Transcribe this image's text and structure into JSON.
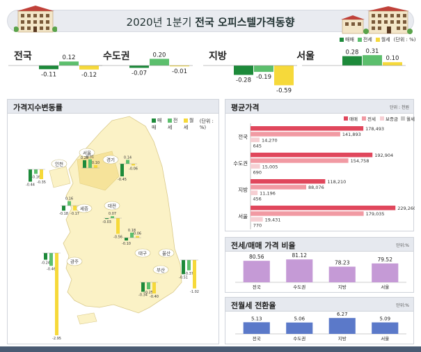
{
  "title_prefix": "2020년 1분기 ",
  "title_bold": "전국 오피스텔가격동향",
  "legend_top": {
    "sale": "매매",
    "jeon": "전세",
    "wol": "월세",
    "unit": "(단위 : %)"
  },
  "colors": {
    "sale": "#1d8a3a",
    "jeon": "#5cbf6d",
    "wol": "#f6d93a",
    "avg_sale": "#e0475c",
    "avg_jeon": "#f19aa3",
    "avg_deposit": "#f6cfd3",
    "avg_wol": "#c8c8c8",
    "ratio": "#c59ad6",
    "conv": "#5b79c9"
  },
  "summary": [
    {
      "region": "전국",
      "values": [
        -0.11,
        0.12,
        -0.12
      ],
      "labels": [
        "-0.11",
        "0.12",
        "-0.12"
      ]
    },
    {
      "region": "수도권",
      "values": [
        -0.07,
        0.2,
        -0.01
      ],
      "labels": [
        "-0.07",
        "0.20",
        "-0.01"
      ]
    },
    {
      "region": "지방",
      "values": [
        -0.28,
        -0.19,
        -0.59
      ],
      "labels": [
        "-0.28",
        "-0.19",
        "-0.59"
      ]
    },
    {
      "region": "서울",
      "values": [
        0.28,
        0.31,
        0.1
      ],
      "labels": [
        "0.28",
        "0.31",
        "0.10"
      ]
    }
  ],
  "map_panel": {
    "title": "가격지수변동률",
    "legend": {
      "sale": "매매",
      "jeon": "전세",
      "wol": "월세",
      "unit": "(단위 : %)"
    }
  },
  "map_regions": [
    {
      "name": "서울",
      "values": [
        0.28,
        0.31,
        0.1
      ],
      "labels": [
        "0.28",
        "0.31",
        "0.10"
      ]
    },
    {
      "name": "경기",
      "values": [
        -0.45,
        0.14,
        -0.06
      ],
      "labels": [
        "-0.45",
        "0.14",
        "-0.06"
      ]
    },
    {
      "name": "인천",
      "values": [
        -0.44,
        -0.16,
        -0.35
      ],
      "labels": [
        "-0.44",
        "-0.16",
        "-0.35"
      ]
    },
    {
      "name": "세종",
      "values": [
        -0.18,
        0.16,
        -0.17
      ],
      "labels": [
        "-0.18",
        "0.16",
        "-0.17"
      ]
    },
    {
      "name": "대전",
      "values": [
        -0.03,
        0.07,
        -0.56
      ],
      "labels": [
        "-0.03",
        "0.07",
        "-0.56"
      ]
    },
    {
      "name": "대구",
      "values": [
        -0.1,
        0.18,
        0.06
      ],
      "labels": [
        "-0.10",
        "0.18",
        "0.06"
      ]
    },
    {
      "name": "광주",
      "values": [
        -0.24,
        -0.46,
        -2.95
      ],
      "labels": [
        "-0.24",
        "-0.46",
        "-2.95"
      ]
    },
    {
      "name": "울산",
      "values": [
        -0.51,
        -0.37,
        -1.02
      ],
      "labels": [
        "-0.51",
        "-0.37",
        "-1.02"
      ]
    },
    {
      "name": "부산",
      "values": [
        -0.34,
        -0.25,
        -0.4
      ],
      "labels": [
        "-0.34",
        "-0.25",
        "-0.40"
      ]
    }
  ],
  "avg_panel": {
    "title": "평균가격",
    "unit": "단위 : 천원",
    "legend": [
      "매매",
      "전세",
      "보증금",
      "월세"
    ]
  },
  "avg_price": [
    {
      "region": "전국",
      "values": [
        178493,
        141893,
        14270,
        645
      ],
      "labels": [
        "178,493",
        "141,893",
        "14,270",
        "645"
      ]
    },
    {
      "region": "수도권",
      "values": [
        192904,
        154758,
        15005,
        690
      ],
      "labels": [
        "192,904",
        "154,758",
        "15,005",
        "690"
      ]
    },
    {
      "region": "지방",
      "values": [
        118210,
        88076,
        11196,
        456
      ],
      "labels": [
        "118,210",
        "88,076",
        "11,196",
        "456"
      ]
    },
    {
      "region": "서울",
      "values": [
        229260,
        179035,
        19431,
        770
      ],
      "labels": [
        "229,260",
        "179,035",
        "19,431",
        "770"
      ]
    }
  ],
  "ratio_panel": {
    "title": "전세/매매 가격 비율",
    "unit": "단위:%"
  },
  "ratio": {
    "categories": [
      "전국",
      "수도권",
      "지방",
      "서울"
    ],
    "values": [
      80.56,
      81.12,
      78.23,
      79.52
    ],
    "labels": [
      "80.56",
      "81.12",
      "78.23",
      "79.52"
    ]
  },
  "conv_panel": {
    "title": "전월세 전환율",
    "unit": "단위:%"
  },
  "conv": {
    "categories": [
      "전국",
      "수도권",
      "지방",
      "서울"
    ],
    "values": [
      5.13,
      5.06,
      6.27,
      5.09
    ],
    "labels": [
      "5.13",
      "5.06",
      "6.27",
      "5.09"
    ]
  },
  "chart_data": [
    {
      "type": "bar",
      "title": "전국 오피스텔가격동향",
      "categories": [
        "전국",
        "수도권",
        "지방",
        "서울"
      ],
      "series": [
        {
          "name": "매매",
          "values": [
            -0.11,
            -0.07,
            -0.28,
            0.28
          ]
        },
        {
          "name": "전세",
          "values": [
            0.12,
            0.2,
            -0.19,
            0.31
          ]
        },
        {
          "name": "월세",
          "values": [
            -0.12,
            -0.01,
            -0.59,
            0.1
          ]
        }
      ]
    },
    {
      "type": "bar",
      "title": "평균가격",
      "categories": [
        "전국",
        "수도권",
        "지방",
        "서울"
      ],
      "series": [
        {
          "name": "매매",
          "values": [
            178493,
            192904,
            118210,
            229260
          ]
        },
        {
          "name": "전세",
          "values": [
            141893,
            154758,
            88076,
            179035
          ]
        },
        {
          "name": "보증금",
          "values": [
            14270,
            15005,
            11196,
            19431
          ]
        },
        {
          "name": "월세",
          "values": [
            645,
            690,
            456,
            770
          ]
        }
      ]
    },
    {
      "type": "bar",
      "title": "전세/매매 가격 비율",
      "categories": [
        "전국",
        "수도권",
        "지방",
        "서울"
      ],
      "values": [
        80.56,
        81.12,
        78.23,
        79.52
      ]
    },
    {
      "type": "bar",
      "title": "전월세 전환율",
      "categories": [
        "전국",
        "수도권",
        "지방",
        "서울"
      ],
      "values": [
        5.13,
        5.06,
        6.27,
        5.09
      ]
    }
  ]
}
